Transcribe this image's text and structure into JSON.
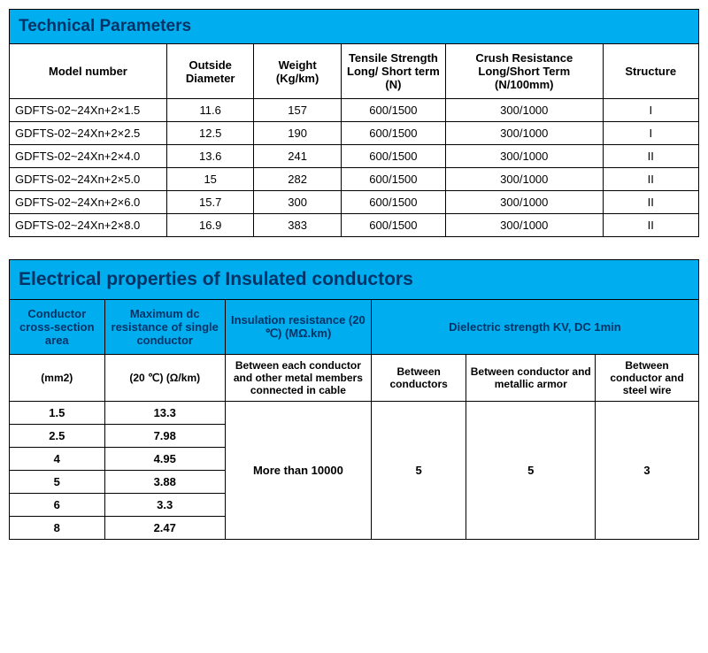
{
  "table1": {
    "title": "Technical Parameters",
    "columns": [
      "Model number",
      "Outside Diameter",
      "Weight (Kg/km)",
      "Tensile Strength Long/ Short term (N)",
      "Crush Resistance Long/Short Term (N/100mm)",
      "Structure"
    ],
    "rows": [
      [
        "GDFTS-02~24Xn+2×1.5",
        "11.6",
        "157",
        "600/1500",
        "300/1000",
        "I"
      ],
      [
        "GDFTS-02~24Xn+2×2.5",
        "12.5",
        "190",
        "600/1500",
        "300/1000",
        "I"
      ],
      [
        "GDFTS-02~24Xn+2×4.0",
        "13.6",
        "241",
        "600/1500",
        "300/1000",
        "II"
      ],
      [
        "GDFTS-02~24Xn+2×5.0",
        "15",
        "282",
        "600/1500",
        "300/1000",
        "II"
      ],
      [
        "GDFTS-02~24Xn+2×6.0",
        "15.7",
        "300",
        "600/1500",
        "300/1000",
        "II"
      ],
      [
        "GDFTS-02~24Xn+2×8.0",
        "16.9",
        "383",
        "600/1500",
        "300/1000",
        "II"
      ]
    ]
  },
  "table2": {
    "title": "Electrical properties of Insulated conductors",
    "header1": [
      "Conductor cross-section area",
      "Maximum dc resistance of single conductor",
      "Insulation resistance (20 ℃) (MΩ.km)",
      "Dielectric strength KV, DC 1min"
    ],
    "header2": [
      "(mm2)",
      "(20 ℃) (Ω/km)",
      "Between each conductor and other metal members connected in cable",
      "Between conductors",
      "Between conductor and metallic armor",
      "Between conductor and steel wire"
    ],
    "rows": [
      [
        "1.5",
        "13.3"
      ],
      [
        "2.5",
        "7.98"
      ],
      [
        "4",
        "4.95"
      ],
      [
        "5",
        "3.88"
      ],
      [
        "6",
        "3.3"
      ],
      [
        "8",
        "2.47"
      ]
    ],
    "merged": {
      "insulation": "More than 10000",
      "d1": "5",
      "d2": "5",
      "d3": "3"
    }
  }
}
